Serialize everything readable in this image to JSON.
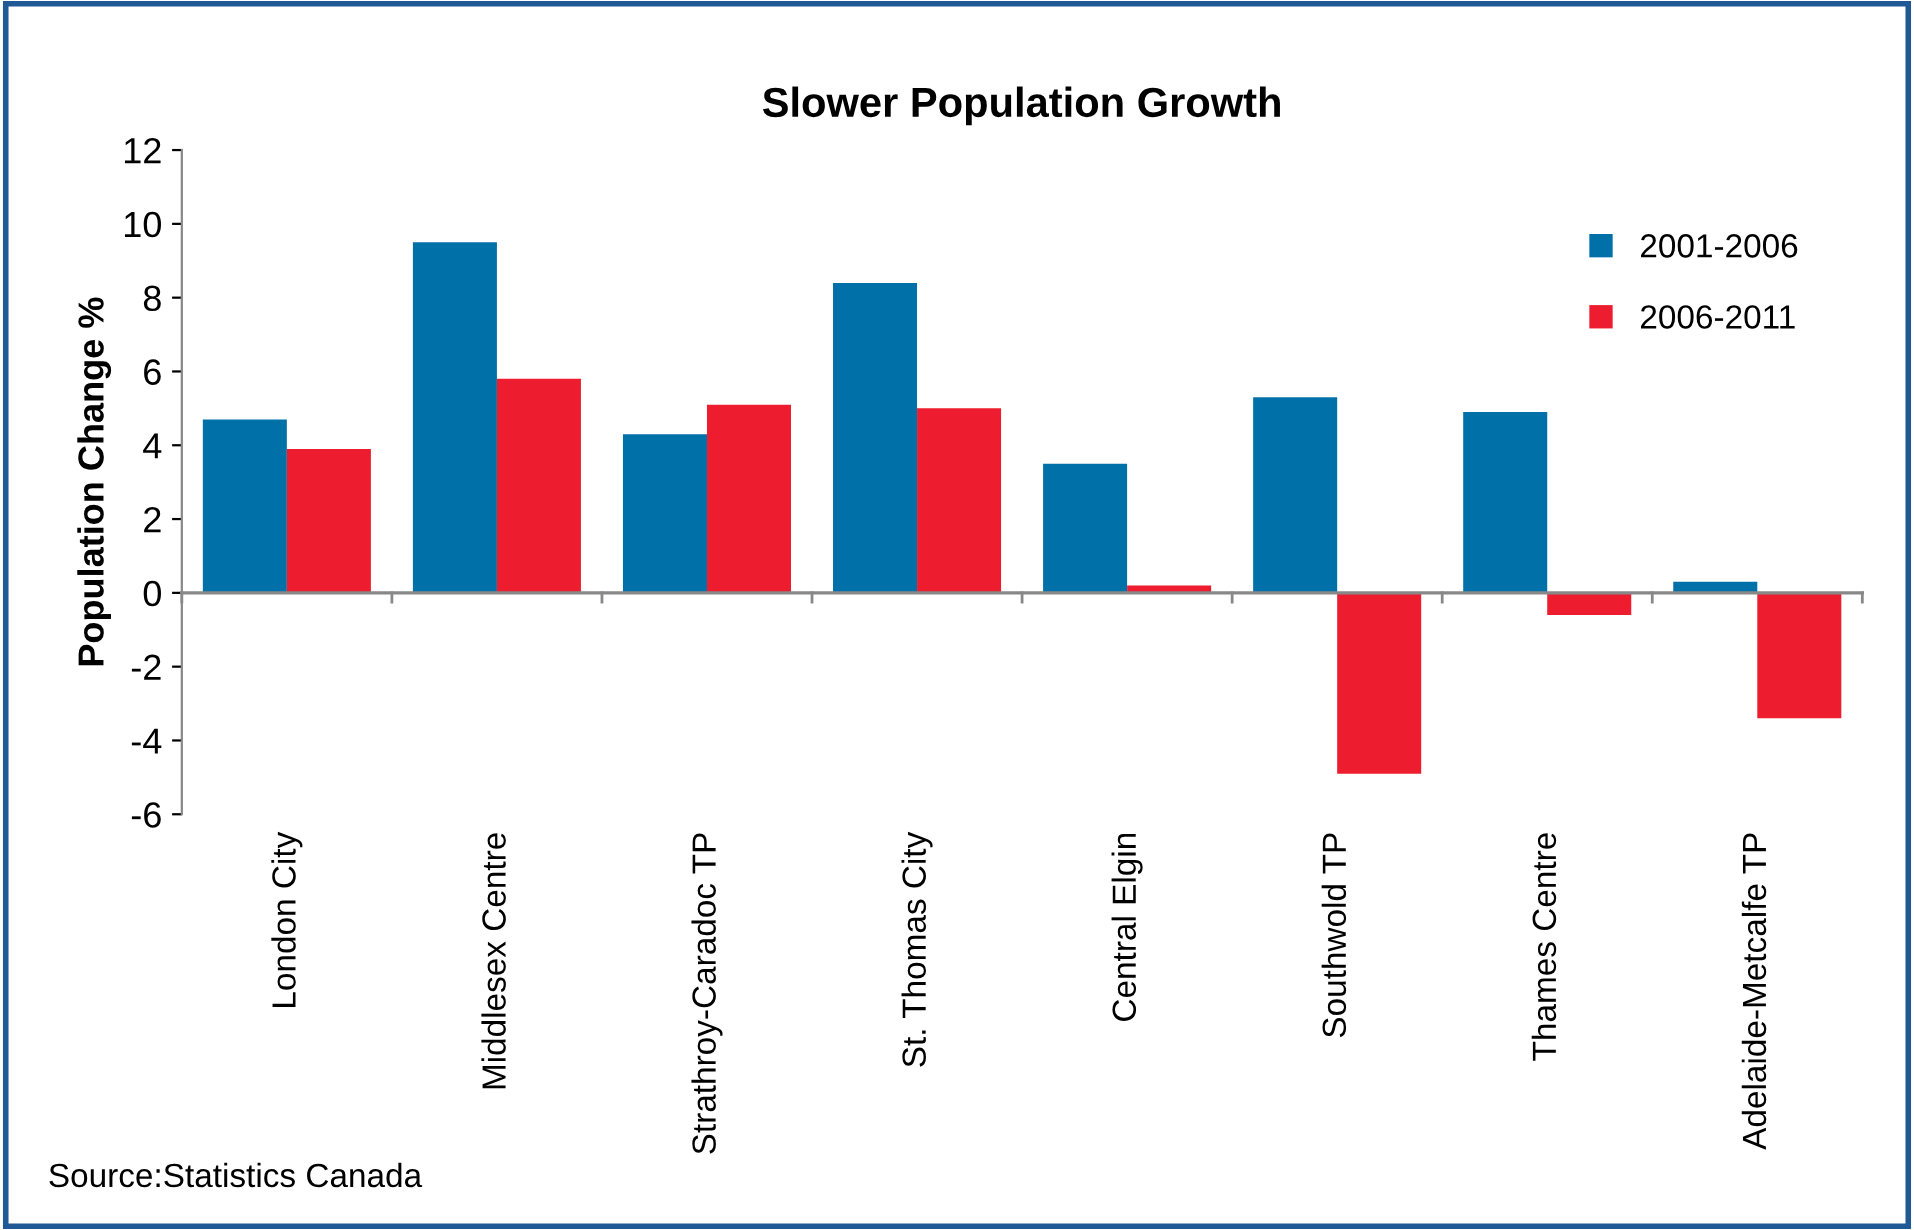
{
  "chart_data": {
    "type": "bar",
    "title": "Slower Population Growth",
    "ylabel": "Population Change %",
    "categories": [
      "London City",
      "Middlesex Centre",
      "Strathroy-Caradoc TP",
      "St. Thomas City",
      "Central Elgin",
      "Southwold TP",
      "Thames Centre",
      "Adelaide-Metcalfe TP"
    ],
    "series": [
      {
        "name": "2001-2006",
        "color": "#0070a8",
        "values": [
          4.7,
          9.5,
          4.3,
          8.4,
          3.5,
          5.3,
          4.9,
          0.3
        ]
      },
      {
        "name": "2006-2011",
        "color": "#ed1c2e",
        "values": [
          3.9,
          5.8,
          5.1,
          5.0,
          0.2,
          -4.9,
          -0.6,
          -3.4
        ]
      }
    ],
    "ylim": [
      -6,
      12
    ],
    "yticks": [
      -6,
      -4,
      -2,
      0,
      2,
      4,
      6,
      8,
      10,
      12
    ],
    "legend": "top right",
    "annotations": [
      "Source:Statistics Canada"
    ]
  }
}
